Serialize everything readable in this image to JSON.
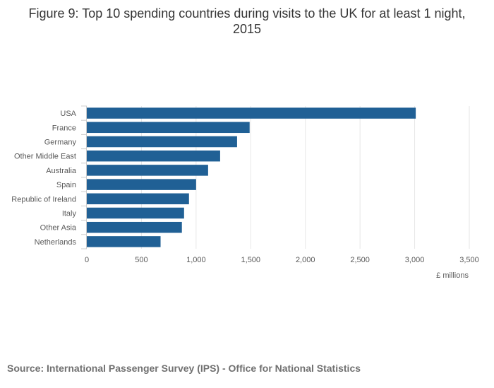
{
  "chart_data": {
    "type": "bar",
    "orientation": "horizontal",
    "title": "Figure 9: Top 10 spending countries during visits to the UK for at least 1 night, 2015",
    "categories": [
      "USA",
      "France",
      "Germany",
      "Other Middle East",
      "Australia",
      "Spain",
      "Republic of Ireland",
      "Italy",
      "Other Asia",
      "Netherlands"
    ],
    "values": [
      3010,
      1490,
      1375,
      1220,
      1110,
      1000,
      935,
      890,
      870,
      675
    ],
    "xlabel": "£ millions",
    "ylabel": "",
    "xlim": [
      0,
      3500
    ],
    "xticks": [
      0,
      500,
      1000,
      1500,
      2000,
      2500,
      3000,
      3500
    ],
    "xtick_labels": [
      "0",
      "500",
      "1,000",
      "1,500",
      "2,000",
      "2,500",
      "3,000",
      "3,500"
    ],
    "grid": true,
    "bar_color": "#206095",
    "source": "Source: International Passenger Survey (IPS) - Office for National Statistics"
  }
}
